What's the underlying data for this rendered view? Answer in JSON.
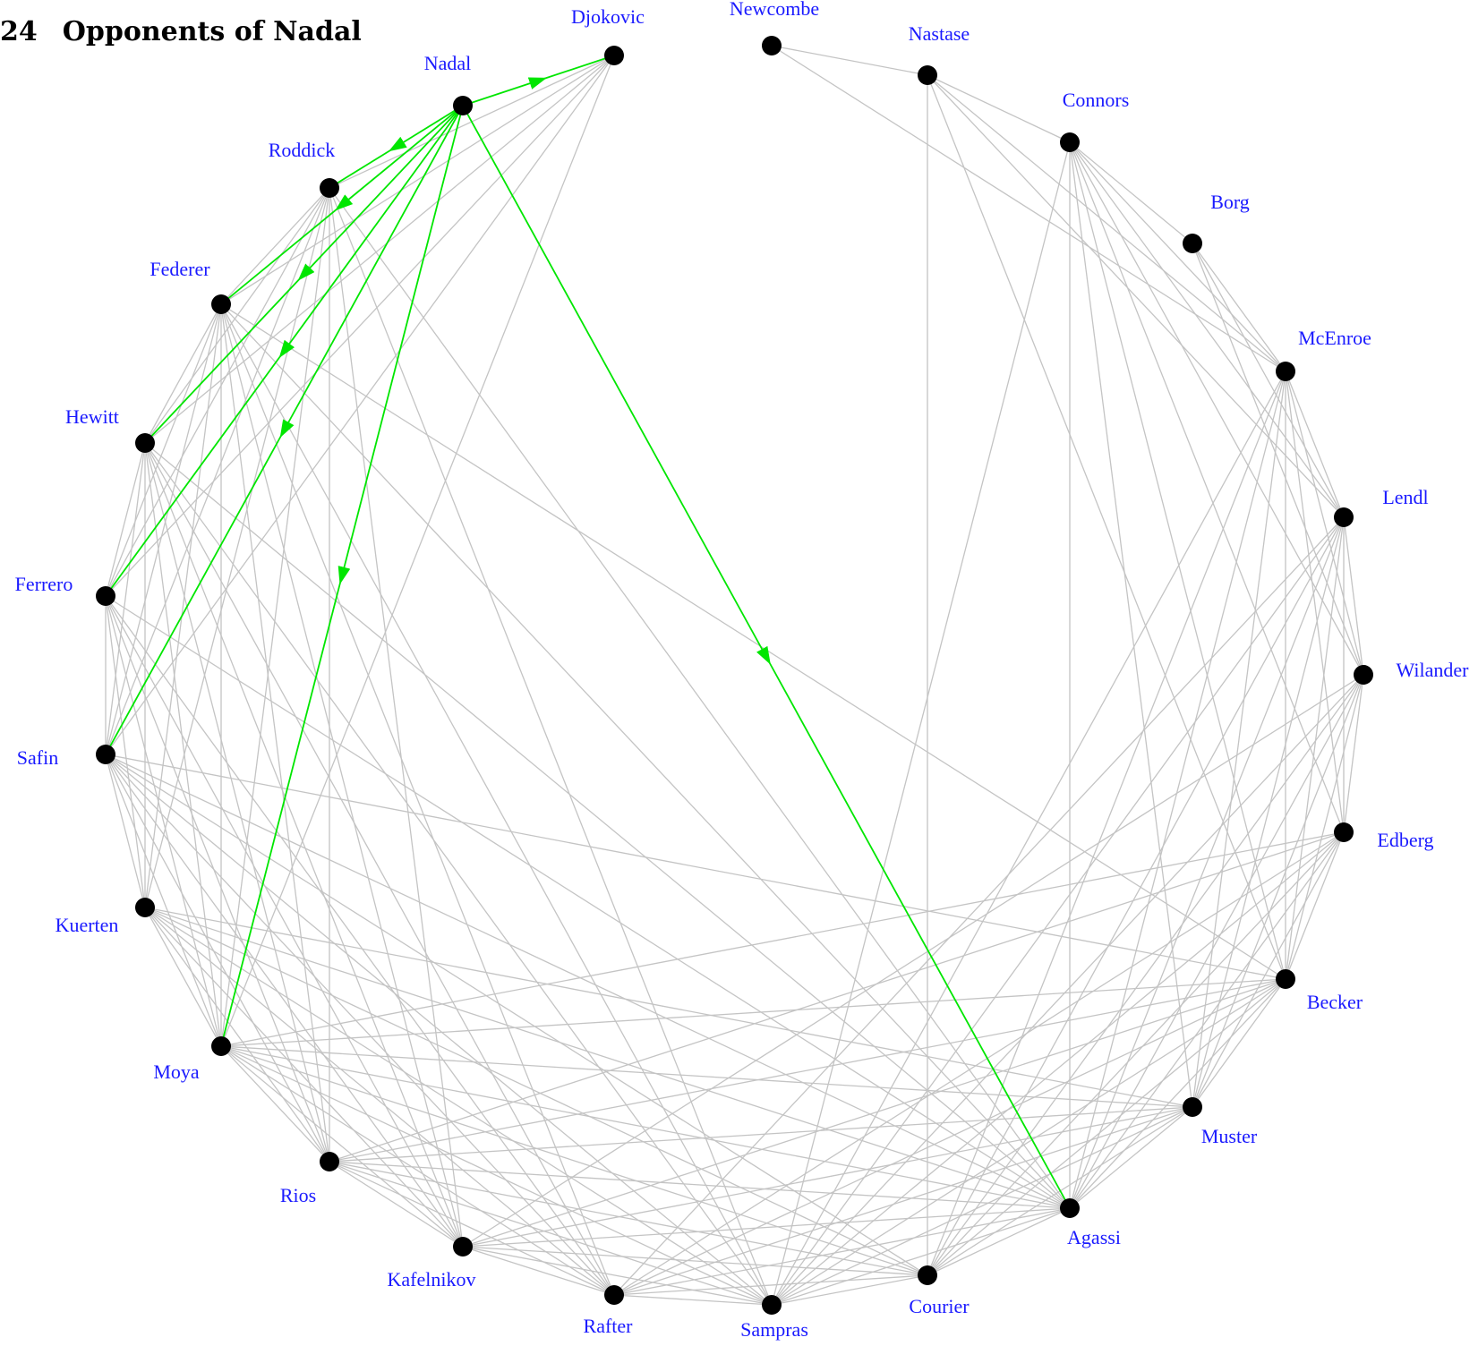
{
  "title": {
    "number": "24",
    "text": "Opponents of Nadal"
  },
  "colors": {
    "edge": "#c4c4c4",
    "highlight": "#00e600",
    "node": "#000000",
    "label": "#1a1aff"
  },
  "players": [
    "Nadal",
    "Djokovic",
    "Newcombe",
    "Nastase",
    "Connors",
    "Borg",
    "McEnroe",
    "Lendl",
    "Wilander",
    "Edberg",
    "Becker",
    "Muster",
    "Agassi",
    "Courier",
    "Sampras",
    "Rafter",
    "Kafelnikov",
    "Rios",
    "Moya",
    "Kuerten",
    "Safin",
    "Ferrero",
    "Hewitt",
    "Federer",
    "Roddick"
  ],
  "highlight_edges": [
    [
      "Nadal",
      "Djokovic"
    ],
    [
      "Nadal",
      "Roddick"
    ],
    [
      "Nadal",
      "Federer"
    ],
    [
      "Nadal",
      "Hewitt"
    ],
    [
      "Nadal",
      "Ferrero"
    ],
    [
      "Nadal",
      "Safin"
    ],
    [
      "Nadal",
      "Moya"
    ],
    [
      "Nadal",
      "Agassi"
    ]
  ],
  "edges": [
    [
      "Djokovic",
      "Roddick"
    ],
    [
      "Djokovic",
      "Federer"
    ],
    [
      "Djokovic",
      "Hewitt"
    ],
    [
      "Djokovic",
      "Ferrero"
    ],
    [
      "Djokovic",
      "Safin"
    ],
    [
      "Djokovic",
      "Moya"
    ],
    [
      "Newcombe",
      "Nastase"
    ],
    [
      "Newcombe",
      "McEnroe"
    ],
    [
      "Nastase",
      "Connors"
    ],
    [
      "Nastase",
      "McEnroe"
    ],
    [
      "Nastase",
      "Lendl"
    ],
    [
      "Nastase",
      "Becker"
    ],
    [
      "Nastase",
      "Courier"
    ],
    [
      "Connors",
      "Borg"
    ],
    [
      "Connors",
      "McEnroe"
    ],
    [
      "Connors",
      "Lendl"
    ],
    [
      "Connors",
      "Wilander"
    ],
    [
      "Connors",
      "Edberg"
    ],
    [
      "Connors",
      "Becker"
    ],
    [
      "Connors",
      "Muster"
    ],
    [
      "Connors",
      "Agassi"
    ],
    [
      "Connors",
      "Sampras"
    ],
    [
      "Borg",
      "McEnroe"
    ],
    [
      "Borg",
      "Lendl"
    ],
    [
      "Borg",
      "Wilander"
    ],
    [
      "McEnroe",
      "Lendl"
    ],
    [
      "McEnroe",
      "Wilander"
    ],
    [
      "McEnroe",
      "Edberg"
    ],
    [
      "McEnroe",
      "Becker"
    ],
    [
      "McEnroe",
      "Muster"
    ],
    [
      "McEnroe",
      "Agassi"
    ],
    [
      "McEnroe",
      "Courier"
    ],
    [
      "McEnroe",
      "Sampras"
    ],
    [
      "Lendl",
      "Wilander"
    ],
    [
      "Lendl",
      "Edberg"
    ],
    [
      "Lendl",
      "Becker"
    ],
    [
      "Lendl",
      "Muster"
    ],
    [
      "Lendl",
      "Agassi"
    ],
    [
      "Lendl",
      "Courier"
    ],
    [
      "Lendl",
      "Sampras"
    ],
    [
      "Lendl",
      "Rafter"
    ],
    [
      "Wilander",
      "Edberg"
    ],
    [
      "Wilander",
      "Becker"
    ],
    [
      "Wilander",
      "Muster"
    ],
    [
      "Wilander",
      "Agassi"
    ],
    [
      "Wilander",
      "Courier"
    ],
    [
      "Wilander",
      "Sampras"
    ],
    [
      "Wilander",
      "Kafelnikov"
    ],
    [
      "Edberg",
      "Becker"
    ],
    [
      "Edberg",
      "Muster"
    ],
    [
      "Edberg",
      "Agassi"
    ],
    [
      "Edberg",
      "Courier"
    ],
    [
      "Edberg",
      "Sampras"
    ],
    [
      "Edberg",
      "Rafter"
    ],
    [
      "Edberg",
      "Rios"
    ],
    [
      "Edberg",
      "Moya"
    ],
    [
      "Becker",
      "Muster"
    ],
    [
      "Becker",
      "Agassi"
    ],
    [
      "Becker",
      "Courier"
    ],
    [
      "Becker",
      "Sampras"
    ],
    [
      "Becker",
      "Rafter"
    ],
    [
      "Becker",
      "Kafelnikov"
    ],
    [
      "Becker",
      "Rios"
    ],
    [
      "Becker",
      "Moya"
    ],
    [
      "Becker",
      "Safin"
    ],
    [
      "Becker",
      "Federer"
    ],
    [
      "Muster",
      "Agassi"
    ],
    [
      "Muster",
      "Courier"
    ],
    [
      "Muster",
      "Sampras"
    ],
    [
      "Muster",
      "Rafter"
    ],
    [
      "Muster",
      "Kafelnikov"
    ],
    [
      "Muster",
      "Rios"
    ],
    [
      "Muster",
      "Moya"
    ],
    [
      "Muster",
      "Kuerten"
    ],
    [
      "Agassi",
      "Courier"
    ],
    [
      "Agassi",
      "Sampras"
    ],
    [
      "Agassi",
      "Rafter"
    ],
    [
      "Agassi",
      "Kafelnikov"
    ],
    [
      "Agassi",
      "Rios"
    ],
    [
      "Agassi",
      "Moya"
    ],
    [
      "Agassi",
      "Kuerten"
    ],
    [
      "Agassi",
      "Safin"
    ],
    [
      "Agassi",
      "Ferrero"
    ],
    [
      "Agassi",
      "Hewitt"
    ],
    [
      "Agassi",
      "Federer"
    ],
    [
      "Agassi",
      "Roddick"
    ],
    [
      "Courier",
      "Sampras"
    ],
    [
      "Courier",
      "Rafter"
    ],
    [
      "Courier",
      "Kafelnikov"
    ],
    [
      "Courier",
      "Rios"
    ],
    [
      "Courier",
      "Moya"
    ],
    [
      "Courier",
      "Kuerten"
    ],
    [
      "Courier",
      "Safin"
    ],
    [
      "Sampras",
      "Rafter"
    ],
    [
      "Sampras",
      "Kafelnikov"
    ],
    [
      "Sampras",
      "Rios"
    ],
    [
      "Sampras",
      "Moya"
    ],
    [
      "Sampras",
      "Kuerten"
    ],
    [
      "Sampras",
      "Safin"
    ],
    [
      "Sampras",
      "Hewitt"
    ],
    [
      "Sampras",
      "Federer"
    ],
    [
      "Sampras",
      "Roddick"
    ],
    [
      "Rafter",
      "Kafelnikov"
    ],
    [
      "Rafter",
      "Rios"
    ],
    [
      "Rafter",
      "Moya"
    ],
    [
      "Rafter",
      "Kuerten"
    ],
    [
      "Rafter",
      "Safin"
    ],
    [
      "Rafter",
      "Ferrero"
    ],
    [
      "Rafter",
      "Hewitt"
    ],
    [
      "Rafter",
      "Federer"
    ],
    [
      "Kafelnikov",
      "Rios"
    ],
    [
      "Kafelnikov",
      "Moya"
    ],
    [
      "Kafelnikov",
      "Kuerten"
    ],
    [
      "Kafelnikov",
      "Safin"
    ],
    [
      "Kafelnikov",
      "Ferrero"
    ],
    [
      "Kafelnikov",
      "Hewitt"
    ],
    [
      "Kafelnikov",
      "Federer"
    ],
    [
      "Kafelnikov",
      "Roddick"
    ],
    [
      "Rios",
      "Moya"
    ],
    [
      "Rios",
      "Kuerten"
    ],
    [
      "Rios",
      "Safin"
    ],
    [
      "Rios",
      "Ferrero"
    ],
    [
      "Rios",
      "Hewitt"
    ],
    [
      "Rios",
      "Federer"
    ],
    [
      "Rios",
      "Roddick"
    ],
    [
      "Moya",
      "Kuerten"
    ],
    [
      "Moya",
      "Safin"
    ],
    [
      "Moya",
      "Ferrero"
    ],
    [
      "Moya",
      "Hewitt"
    ],
    [
      "Moya",
      "Federer"
    ],
    [
      "Moya",
      "Roddick"
    ],
    [
      "Kuerten",
      "Safin"
    ],
    [
      "Kuerten",
      "Ferrero"
    ],
    [
      "Kuerten",
      "Hewitt"
    ],
    [
      "Kuerten",
      "Federer"
    ],
    [
      "Kuerten",
      "Roddick"
    ],
    [
      "Safin",
      "Ferrero"
    ],
    [
      "Safin",
      "Hewitt"
    ],
    [
      "Safin",
      "Federer"
    ],
    [
      "Safin",
      "Roddick"
    ],
    [
      "Ferrero",
      "Hewitt"
    ],
    [
      "Ferrero",
      "Federer"
    ],
    [
      "Ferrero",
      "Roddick"
    ],
    [
      "Hewitt",
      "Federer"
    ],
    [
      "Hewitt",
      "Roddick"
    ],
    [
      "Federer",
      "Roddick"
    ]
  ]
}
